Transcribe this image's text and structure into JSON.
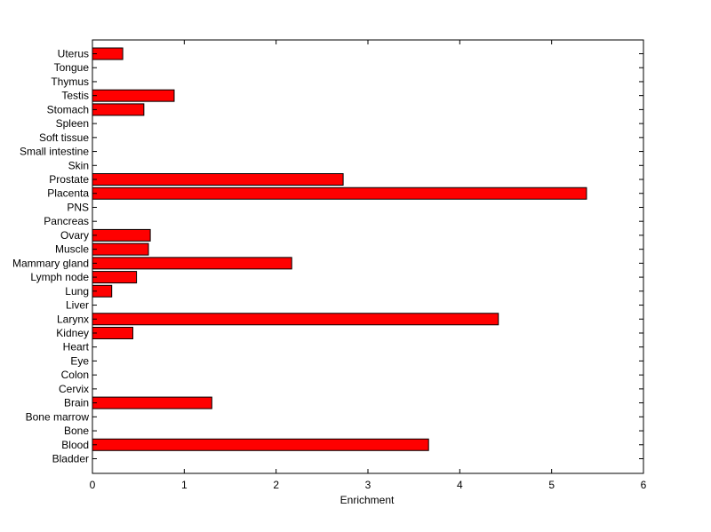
{
  "chart_data": {
    "type": "bar",
    "orientation": "horizontal",
    "categories": [
      "Uterus",
      "Tongue",
      "Thymus",
      "Testis",
      "Stomach",
      "Spleen",
      "Soft tissue",
      "Small intestine",
      "Skin",
      "Prostate",
      "Placenta",
      "PNS",
      "Pancreas",
      "Ovary",
      "Muscle",
      "Mammary gland",
      "Lymph node",
      "Lung",
      "Liver",
      "Larynx",
      "Kidney",
      "Heart",
      "Eye",
      "Colon",
      "Cervix",
      "Brain",
      "Bone marrow",
      "Bone",
      "Blood",
      "Bladder"
    ],
    "values": [
      0.33,
      0,
      0,
      0.89,
      0.56,
      0,
      0,
      0,
      0,
      2.73,
      5.38,
      0,
      0,
      0.63,
      0.61,
      2.17,
      0.48,
      0.21,
      0,
      4.42,
      0.44,
      0,
      0,
      0,
      0,
      1.3,
      0,
      0,
      3.66,
      0
    ],
    "xlabel": "Enrichment",
    "ylabel": "",
    "title": "",
    "xlim": [
      0,
      6
    ],
    "xticks": [
      "0",
      "1",
      "2",
      "3",
      "4",
      "5",
      "6"
    ],
    "grid": false,
    "bar_color": "#ff0000",
    "bar_edge_color": "#000000"
  }
}
